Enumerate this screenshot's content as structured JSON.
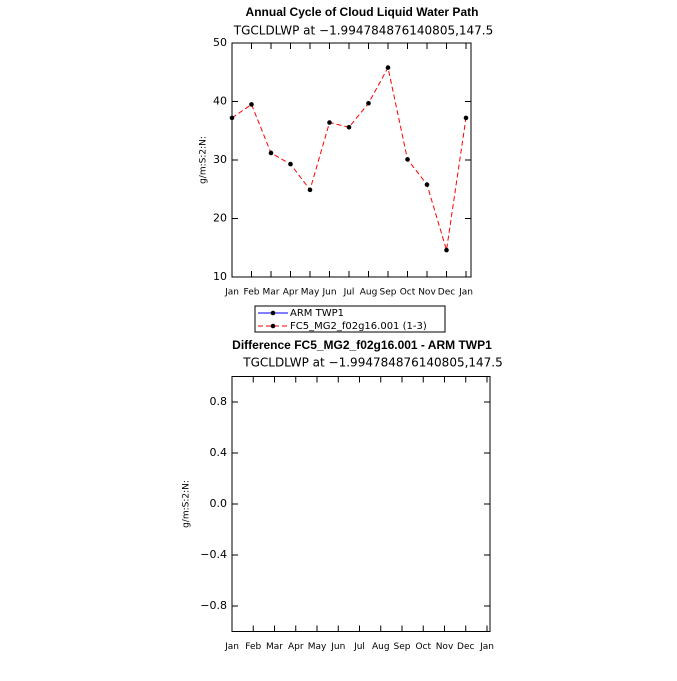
{
  "chart_data": [
    {
      "type": "line",
      "title": "Annual Cycle of Cloud Liquid Water Path",
      "subtitle": "TGCLDLWP at −1.994784876140805,147.5",
      "y_label": "g/m:S:2:N:",
      "categories": [
        "Jan",
        "Feb",
        "Mar",
        "Apr",
        "May",
        "Jun",
        "Jul",
        "Aug",
        "Sep",
        "Oct",
        "Nov",
        "Dec",
        "Jan"
      ],
      "series": [
        {
          "name": "ARM TWP1",
          "color": "#0000ff",
          "dash": false,
          "values": [
            null,
            null,
            null,
            null,
            null,
            null,
            null,
            null,
            null,
            null,
            null,
            null,
            null
          ]
        },
        {
          "name": "FC5_MG2_f02g16.001 (1-3)",
          "color": "#ff0000",
          "dash": true,
          "values": [
            37.2,
            39.5,
            31.2,
            29.3,
            24.9,
            36.4,
            35.6,
            39.7,
            45.8,
            30.1,
            25.8,
            14.6,
            37.2
          ]
        }
      ],
      "ylim": [
        10,
        50
      ],
      "yticks": [
        10,
        20,
        30,
        40,
        50
      ],
      "legend": true
    },
    {
      "type": "line",
      "title": "Difference FC5_MG2_f02g16.001 - ARM TWP1",
      "subtitle": "TGCLDLWP at −1.994784876140805,147.5",
      "y_label": "g/m:S:2:N:",
      "categories": [
        "Jan",
        "Feb",
        "Mar",
        "Apr",
        "May",
        "Jun",
        "Jul",
        "Aug",
        "Sep",
        "Oct",
        "Nov",
        "Dec",
        "Jan"
      ],
      "series": [],
      "ylim": [
        -1,
        1
      ],
      "yticks": [
        {
          "value": -0.8,
          "label": "−0.8"
        },
        {
          "value": -0.4,
          "label": "−0.4"
        },
        {
          "value": 0,
          "label": "0.0"
        },
        0.4,
        0.8
      ],
      "legend": false
    }
  ]
}
